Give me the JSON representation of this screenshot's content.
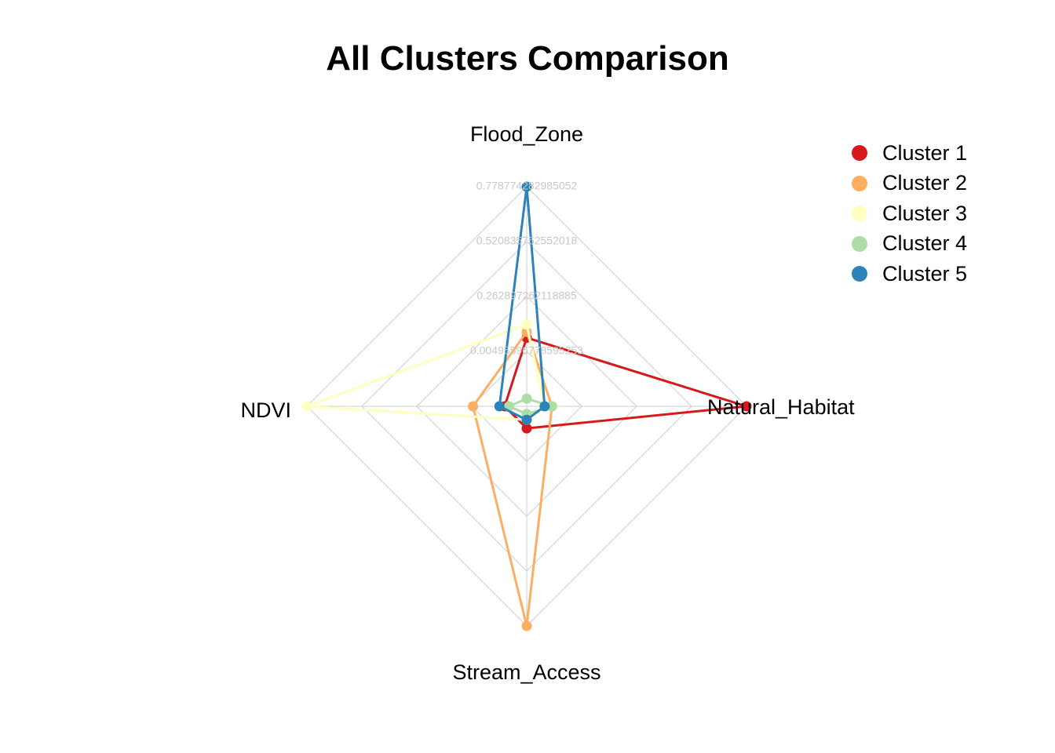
{
  "chart_data": {
    "type": "radar",
    "title": "All Clusters Comparison",
    "axes": [
      "Flood_Zone",
      "Natural_Habitat",
      "Stream_Access",
      "NDVI"
    ],
    "rmin": 0.0049559677,
    "rmax": 0.7787742838,
    "ticks": [
      "0.00495596778595253",
      "0.262897262118885",
      "0.520835752552018",
      "0.778774282985052"
    ],
    "series": [
      {
        "name": "Cluster 1",
        "color": "#D7191C",
        "values": [
          0.2465,
          0.7788,
          0.0826,
          0.0826
        ]
      },
      {
        "name": "Cluster 2",
        "color": "#FDAE61",
        "values": [
          0.2672,
          0.0939,
          0.7788,
          0.194
        ]
      },
      {
        "name": "Cluster 3",
        "color": "#FFFFBF",
        "values": [
          0.293,
          0.0681,
          0.0526,
          0.7788
        ]
      },
      {
        "name": "Cluster 4",
        "color": "#ABDDA4",
        "values": [
          0.032,
          0.0939,
          0.032,
          0.0671
        ]
      },
      {
        "name": "Cluster 5",
        "color": "#2B83BA",
        "values": [
          0.7788,
          0.0681,
          0.0526,
          0.101
        ]
      }
    ],
    "grid": true,
    "legend_position": "top-right"
  }
}
